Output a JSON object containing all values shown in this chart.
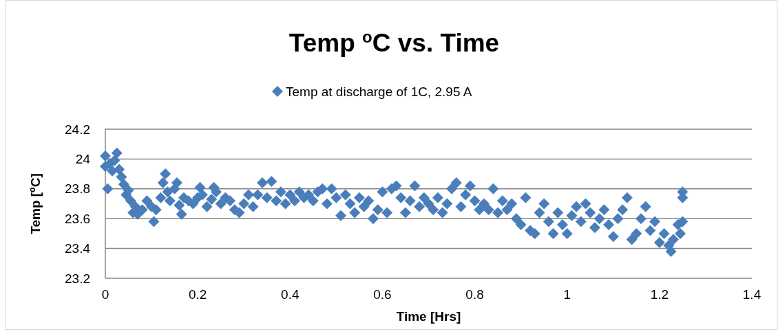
{
  "chart_data": {
    "type": "scatter",
    "title": "Temp $^{o}$C vs. Time",
    "xlabel": "Time [Hrs]",
    "ylabel": "Temp [$^{o}$C]",
    "xlim": [
      0,
      1.4
    ],
    "xticks": [
      0,
      0.2,
      0.4,
      0.6,
      0.8,
      1,
      1.2,
      1.4
    ],
    "ylim": [
      23.2,
      24.2
    ],
    "yticks": [
      23.2,
      23.4,
      23.6,
      23.8,
      24,
      24.2
    ],
    "grid": "y",
    "legend": "top",
    "marker": "diamond",
    "series": [
      {
        "name": "Temp at discharge of 1C, 2.95 A",
        "color": "#4a7ebb",
        "x": [
          0,
          0,
          0.005,
          0.01,
          0.015,
          0.02,
          0.025,
          0.03,
          0.035,
          0.04,
          0.045,
          0.05,
          0.055,
          0.06,
          0.065,
          0.07,
          0.08,
          0.09,
          0.1,
          0.105,
          0.11,
          0.12,
          0.125,
          0.13,
          0.135,
          0.14,
          0.15,
          0.155,
          0.16,
          0.165,
          0.17,
          0.18,
          0.19,
          0.2,
          0.205,
          0.21,
          0.22,
          0.23,
          0.235,
          0.24,
          0.25,
          0.26,
          0.27,
          0.28,
          0.29,
          0.3,
          0.31,
          0.32,
          0.33,
          0.34,
          0.35,
          0.36,
          0.37,
          0.38,
          0.39,
          0.4,
          0.41,
          0.42,
          0.43,
          0.44,
          0.45,
          0.46,
          0.47,
          0.48,
          0.49,
          0.5,
          0.51,
          0.52,
          0.53,
          0.54,
          0.55,
          0.56,
          0.57,
          0.58,
          0.59,
          0.6,
          0.61,
          0.62,
          0.63,
          0.64,
          0.65,
          0.66,
          0.67,
          0.68,
          0.69,
          0.7,
          0.71,
          0.72,
          0.73,
          0.74,
          0.75,
          0.76,
          0.77,
          0.78,
          0.79,
          0.8,
          0.81,
          0.82,
          0.83,
          0.84,
          0.85,
          0.86,
          0.87,
          0.88,
          0.89,
          0.9,
          0.91,
          0.92,
          0.93,
          0.94,
          0.95,
          0.96,
          0.97,
          0.98,
          0.99,
          1.0,
          1.01,
          1.02,
          1.03,
          1.04,
          1.05,
          1.06,
          1.07,
          1.08,
          1.09,
          1.1,
          1.11,
          1.12,
          1.13,
          1.14,
          1.15,
          1.16,
          1.17,
          1.18,
          1.19,
          1.2,
          1.21,
          1.22,
          1.225,
          1.23,
          1.24,
          1.245,
          1.25,
          1.25,
          1.25
        ],
        "values": [
          24.02,
          23.95,
          23.8,
          23.97,
          23.92,
          23.99,
          24.04,
          23.93,
          23.88,
          23.83,
          23.76,
          23.79,
          23.72,
          23.64,
          23.68,
          23.63,
          23.66,
          23.72,
          23.68,
          23.58,
          23.66,
          23.74,
          23.84,
          23.9,
          23.78,
          23.72,
          23.8,
          23.84,
          23.69,
          23.63,
          23.74,
          23.72,
          23.7,
          23.74,
          23.81,
          23.76,
          23.68,
          23.73,
          23.81,
          23.78,
          23.7,
          23.74,
          23.72,
          23.66,
          23.64,
          23.7,
          23.76,
          23.68,
          23.76,
          23.84,
          23.74,
          23.85,
          23.72,
          23.78,
          23.7,
          23.76,
          23.72,
          23.78,
          23.74,
          23.76,
          23.72,
          23.78,
          23.8,
          23.7,
          23.8,
          23.74,
          23.62,
          23.76,
          23.7,
          23.64,
          23.74,
          23.68,
          23.72,
          23.6,
          23.66,
          23.78,
          23.64,
          23.8,
          23.82,
          23.74,
          23.64,
          23.72,
          23.82,
          23.68,
          23.74,
          23.7,
          23.66,
          23.74,
          23.64,
          23.7,
          23.8,
          23.84,
          23.68,
          23.76,
          23.82,
          23.72,
          23.66,
          23.7,
          23.66,
          23.8,
          23.64,
          23.72,
          23.66,
          23.7,
          23.6,
          23.56,
          23.74,
          23.52,
          23.5,
          23.64,
          23.7,
          23.58,
          23.5,
          23.64,
          23.56,
          23.5,
          23.62,
          23.68,
          23.58,
          23.7,
          23.64,
          23.54,
          23.6,
          23.66,
          23.56,
          23.48,
          23.6,
          23.66,
          23.74,
          23.46,
          23.5,
          23.6,
          23.68,
          23.52,
          23.58,
          23.44,
          23.5,
          23.42,
          23.38,
          23.46,
          23.56,
          23.5,
          23.58,
          23.78,
          23.74
        ]
      }
    ]
  }
}
